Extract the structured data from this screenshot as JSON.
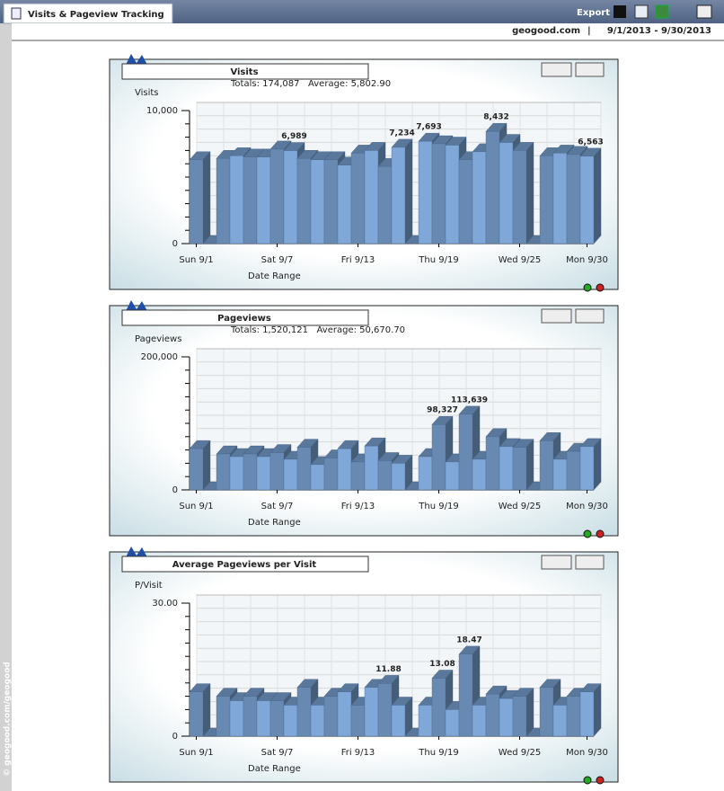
{
  "header": {
    "title": "Visits & Pageview Tracking",
    "export": "Export",
    "site": "geogood.com",
    "date_range": "9/1/2013 - 9/30/2013",
    "watermark": "© geogood.com/geogood"
  },
  "chart_data": [
    {
      "type": "bar",
      "title": "Visits",
      "subtitle": "Totals: 174,087   Average: 5,802.90",
      "y_label": "Visits",
      "x_label": "Date Range",
      "color": "#7196c2",
      "categories": [
        "Sun 9/1",
        null,
        null,
        null,
        null,
        null,
        "Sat 9/7",
        null,
        null,
        null,
        null,
        null,
        "Fri 9/13",
        null,
        null,
        null,
        null,
        null,
        "Thu 9/19",
        null,
        null,
        null,
        null,
        null,
        "Wed 9/25",
        null,
        null,
        null,
        null,
        "Mon 9/30"
      ],
      "values": [
        6300,
        0,
        6400,
        6600,
        6500,
        6500,
        7100,
        6989,
        6400,
        6300,
        6300,
        5900,
        6800,
        7000,
        5800,
        7234,
        0,
        7693,
        7500,
        7400,
        6300,
        6900,
        8432,
        7600,
        7000,
        0,
        6600,
        6800,
        6700,
        6563
      ],
      "value_labels": [
        null,
        null,
        null,
        null,
        null,
        null,
        null,
        "6,989",
        null,
        null,
        null,
        null,
        null,
        null,
        null,
        "7,234",
        null,
        "7,693",
        null,
        null,
        null,
        null,
        "8,432",
        null,
        null,
        null,
        null,
        null,
        null,
        "6,563"
      ],
      "ylim": [
        0,
        10000
      ],
      "yticks": [
        0,
        {
          "value": 10000,
          "label": "10,000"
        }
      ],
      "grid": true
    },
    {
      "type": "bar",
      "title": "Pageviews",
      "subtitle": "Totals: 1,520,121   Average: 50,670.70",
      "y_label": "Pageviews",
      "x_label": "Date Range",
      "color": "#7196c2",
      "categories": [
        "Sun 9/1",
        null,
        null,
        null,
        null,
        null,
        "Sat 9/7",
        null,
        null,
        null,
        null,
        null,
        "Fri 9/13",
        null,
        null,
        null,
        null,
        null,
        "Thu 9/19",
        null,
        null,
        null,
        null,
        null,
        "Wed 9/25",
        null,
        null,
        null,
        null,
        "Mon 9/30"
      ],
      "values": [
        62000,
        0,
        54000,
        50000,
        54000,
        50000,
        56000,
        46000,
        64000,
        38000,
        48000,
        62000,
        42000,
        66000,
        44000,
        40000,
        0,
        50000,
        98327,
        42000,
        113639,
        46000,
        80000,
        65000,
        64000,
        0,
        74000,
        46000,
        58000,
        65000
      ],
      "value_labels": [
        null,
        null,
        null,
        null,
        null,
        null,
        null,
        null,
        null,
        null,
        null,
        null,
        null,
        null,
        null,
        null,
        null,
        null,
        "98,327",
        null,
        "113,639",
        null,
        null,
        null,
        null,
        null,
        null,
        null,
        null,
        null
      ],
      "ylim": [
        0,
        200000
      ],
      "yticks": [
        0,
        {
          "value": 200000,
          "label": "200,000"
        }
      ],
      "grid": true
    },
    {
      "type": "bar",
      "title": "Average Pageviews per Visit",
      "y_label": "P/Visit",
      "x_label": "Date Range",
      "color": "#7196c2",
      "categories": [
        "Sun 9/1",
        null,
        null,
        null,
        null,
        null,
        "Sat 9/7",
        null,
        null,
        null,
        null,
        null,
        "Fri 9/13",
        null,
        null,
        null,
        null,
        null,
        "Thu 9/19",
        null,
        null,
        null,
        null,
        null,
        "Wed 9/25",
        null,
        null,
        null,
        null,
        "Mon 9/30"
      ],
      "values": [
        10,
        0,
        9,
        8,
        9,
        8,
        8,
        7,
        11,
        7,
        9,
        10,
        7,
        11,
        11.88,
        7,
        0,
        7,
        13.08,
        6,
        18.47,
        7,
        9.5,
        8.5,
        9,
        0,
        11,
        7,
        9,
        10
      ],
      "value_labels": [
        null,
        null,
        null,
        null,
        null,
        null,
        null,
        null,
        null,
        null,
        null,
        null,
        null,
        null,
        "11.88",
        null,
        null,
        null,
        "13.08",
        null,
        "18.47",
        null,
        null,
        null,
        null,
        null,
        null,
        null,
        null,
        null
      ],
      "ylim": [
        0,
        30
      ],
      "yticks": [
        0,
        {
          "value": 30,
          "label": "30.00"
        }
      ],
      "grid": true
    }
  ]
}
